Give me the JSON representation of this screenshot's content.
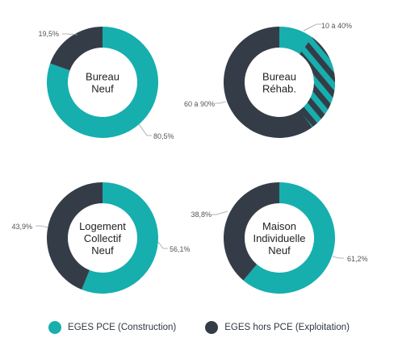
{
  "colors": {
    "construction": "#17aeae",
    "exploitation": "#343d47",
    "leader": "#9aa0a6",
    "label_text": "#555555",
    "center_text": "#222222"
  },
  "legend": {
    "construction_label": "EGES PCE (Construction)",
    "exploitation_label": "EGES hors PCE (Exploitation)"
  },
  "chart_data": [
    {
      "type": "pie",
      "variant": "donut",
      "center_label": [
        "Bureau",
        "Neuf"
      ],
      "slices": [
        {
          "series": "construction",
          "value": 80.5,
          "label": "80,5%"
        },
        {
          "series": "exploitation",
          "value": 19.5,
          "label": "19,5%"
        }
      ]
    },
    {
      "type": "pie",
      "variant": "donut",
      "center_label": [
        "Bureau",
        "Réhab."
      ],
      "slices": [
        {
          "series": "construction",
          "value": 10,
          "label": "10 à 40%",
          "range": [
            10,
            40
          ],
          "hatched_range": true
        },
        {
          "series": "exploitation",
          "value": 90,
          "label": "60 à 90%",
          "range": [
            60,
            90
          ]
        }
      ]
    },
    {
      "type": "pie",
      "variant": "donut",
      "center_label": [
        "Logement",
        "Collectif",
        "Neuf"
      ],
      "slices": [
        {
          "series": "construction",
          "value": 56.1,
          "label": "56,1%"
        },
        {
          "series": "exploitation",
          "value": 43.9,
          "label": "43,9%"
        }
      ]
    },
    {
      "type": "pie",
      "variant": "donut",
      "center_label": [
        "Maison",
        "Individuelle",
        "Neuf"
      ],
      "slices": [
        {
          "series": "construction",
          "value": 61.2,
          "label": "61,2%"
        },
        {
          "series": "exploitation",
          "value": 38.8,
          "label": "38,8%"
        }
      ]
    }
  ]
}
